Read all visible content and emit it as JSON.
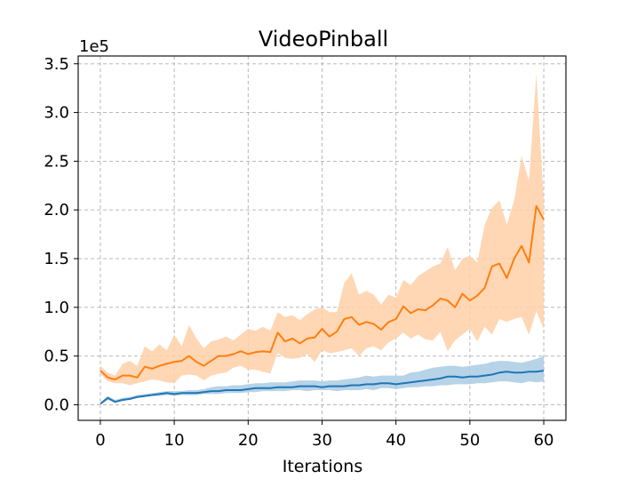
{
  "chart_data": {
    "type": "line",
    "title": "VideoPinball",
    "xlabel": "Iterations",
    "ylabel": "",
    "y_offset_label": "1e5",
    "xlim": [
      -3,
      63
    ],
    "ylim": [
      -0.16,
      3.58
    ],
    "x_ticks": [
      0,
      10,
      20,
      30,
      40,
      50,
      60
    ],
    "y_ticks": [
      0.0,
      0.5,
      1.0,
      1.5,
      2.0,
      2.5,
      3.0,
      3.5
    ],
    "y_tick_labels": [
      "0.0",
      "0.5",
      "1.0",
      "1.5",
      "2.0",
      "2.5",
      "3.0",
      "3.5"
    ],
    "x_tick_labels": [
      "0",
      "10",
      "20",
      "30",
      "40",
      "50",
      "60"
    ],
    "grid": true,
    "series": [
      {
        "color": "#1f77b4",
        "band_color": "#aacbe4",
        "x": [
          0,
          1,
          2,
          3,
          4,
          5,
          6,
          7,
          8,
          9,
          10,
          11,
          12,
          13,
          14,
          15,
          16,
          17,
          18,
          19,
          20,
          21,
          22,
          23,
          24,
          25,
          26,
          27,
          28,
          29,
          30,
          31,
          32,
          33,
          34,
          35,
          36,
          37,
          38,
          39,
          40,
          41,
          42,
          43,
          44,
          45,
          46,
          47,
          48,
          49,
          50,
          51,
          52,
          53,
          54,
          55,
          56,
          57,
          58,
          59,
          60
        ],
        "values": [
          0.01,
          0.07,
          0.03,
          0.05,
          0.06,
          0.08,
          0.09,
          0.1,
          0.11,
          0.12,
          0.11,
          0.12,
          0.12,
          0.12,
          0.13,
          0.14,
          0.14,
          0.15,
          0.15,
          0.15,
          0.16,
          0.17,
          0.17,
          0.17,
          0.18,
          0.18,
          0.18,
          0.19,
          0.19,
          0.19,
          0.18,
          0.19,
          0.19,
          0.19,
          0.2,
          0.2,
          0.21,
          0.21,
          0.22,
          0.22,
          0.21,
          0.22,
          0.23,
          0.24,
          0.25,
          0.26,
          0.27,
          0.29,
          0.29,
          0.28,
          0.29,
          0.29,
          0.3,
          0.31,
          0.33,
          0.34,
          0.33,
          0.33,
          0.34,
          0.34,
          0.35
        ],
        "upper": [
          0.02,
          0.09,
          0.05,
          0.07,
          0.08,
          0.1,
          0.11,
          0.12,
          0.13,
          0.14,
          0.14,
          0.14,
          0.15,
          0.15,
          0.16,
          0.18,
          0.19,
          0.19,
          0.2,
          0.2,
          0.21,
          0.22,
          0.22,
          0.23,
          0.23,
          0.23,
          0.24,
          0.25,
          0.25,
          0.25,
          0.24,
          0.25,
          0.25,
          0.26,
          0.27,
          0.28,
          0.3,
          0.29,
          0.3,
          0.3,
          0.3,
          0.3,
          0.33,
          0.34,
          0.36,
          0.38,
          0.39,
          0.4,
          0.4,
          0.39,
          0.4,
          0.41,
          0.42,
          0.44,
          0.45,
          0.45,
          0.44,
          0.43,
          0.45,
          0.47,
          0.5
        ],
        "lower": [
          0.0,
          0.05,
          0.02,
          0.04,
          0.05,
          0.07,
          0.08,
          0.09,
          0.09,
          0.1,
          0.09,
          0.1,
          0.1,
          0.1,
          0.11,
          0.11,
          0.11,
          0.12,
          0.12,
          0.12,
          0.13,
          0.13,
          0.14,
          0.14,
          0.14,
          0.14,
          0.15,
          0.15,
          0.14,
          0.15,
          0.15,
          0.15,
          0.14,
          0.15,
          0.15,
          0.15,
          0.16,
          0.15,
          0.17,
          0.17,
          0.16,
          0.17,
          0.18,
          0.18,
          0.19,
          0.19,
          0.2,
          0.2,
          0.21,
          0.21,
          0.21,
          0.22,
          0.22,
          0.23,
          0.24,
          0.24,
          0.23,
          0.22,
          0.24,
          0.23,
          0.24
        ]
      },
      {
        "color": "#ff7f0e",
        "band_color": "#ffd0a8",
        "x": [
          0,
          1,
          2,
          3,
          4,
          5,
          6,
          7,
          8,
          9,
          10,
          11,
          12,
          13,
          14,
          15,
          16,
          17,
          18,
          19,
          20,
          21,
          22,
          23,
          24,
          25,
          26,
          27,
          28,
          29,
          30,
          31,
          32,
          33,
          34,
          35,
          36,
          37,
          38,
          39,
          40,
          41,
          42,
          43,
          44,
          45,
          46,
          47,
          48,
          49,
          50,
          51,
          52,
          53,
          54,
          55,
          56,
          57,
          58,
          59,
          60
        ],
        "values": [
          0.35,
          0.28,
          0.26,
          0.3,
          0.3,
          0.28,
          0.39,
          0.37,
          0.4,
          0.42,
          0.44,
          0.45,
          0.5,
          0.44,
          0.4,
          0.45,
          0.5,
          0.5,
          0.52,
          0.55,
          0.52,
          0.54,
          0.55,
          0.54,
          0.74,
          0.65,
          0.68,
          0.63,
          0.68,
          0.69,
          0.78,
          0.7,
          0.75,
          0.88,
          0.9,
          0.82,
          0.85,
          0.83,
          0.77,
          0.85,
          0.88,
          1.01,
          0.94,
          0.98,
          0.97,
          1.02,
          1.09,
          1.07,
          1.0,
          1.14,
          1.07,
          1.12,
          1.2,
          1.42,
          1.45,
          1.3,
          1.5,
          1.63,
          1.46,
          2.04,
          1.9
        ],
        "upper": [
          0.4,
          0.33,
          0.3,
          0.42,
          0.45,
          0.4,
          0.6,
          0.55,
          0.62,
          0.56,
          0.72,
          0.6,
          0.82,
          0.68,
          0.58,
          0.65,
          0.67,
          0.7,
          0.66,
          0.72,
          0.78,
          0.76,
          0.8,
          0.76,
          0.95,
          0.9,
          0.92,
          0.87,
          0.93,
          0.98,
          1.0,
          0.95,
          0.95,
          1.25,
          1.35,
          1.13,
          1.17,
          1.13,
          1.03,
          1.13,
          1.1,
          1.28,
          1.23,
          1.32,
          1.37,
          1.42,
          1.45,
          1.62,
          1.38,
          1.5,
          1.53,
          1.46,
          1.85,
          2.02,
          2.1,
          1.85,
          2.1,
          2.55,
          2.3,
          3.4,
          2.1
        ],
        "lower": [
          0.32,
          0.24,
          0.22,
          0.22,
          0.2,
          0.22,
          0.24,
          0.26,
          0.25,
          0.23,
          0.22,
          0.3,
          0.31,
          0.3,
          0.25,
          0.3,
          0.32,
          0.33,
          0.38,
          0.4,
          0.36,
          0.36,
          0.34,
          0.32,
          0.53,
          0.48,
          0.47,
          0.48,
          0.52,
          0.44,
          0.56,
          0.53,
          0.54,
          0.56,
          0.58,
          0.5,
          0.58,
          0.6,
          0.56,
          0.64,
          0.68,
          0.74,
          0.68,
          0.72,
          0.67,
          0.66,
          0.75,
          0.55,
          0.66,
          0.72,
          0.78,
          0.65,
          0.8,
          0.72,
          0.88,
          0.85,
          0.88,
          0.9,
          0.72,
          0.96,
          0.78
        ]
      }
    ]
  }
}
